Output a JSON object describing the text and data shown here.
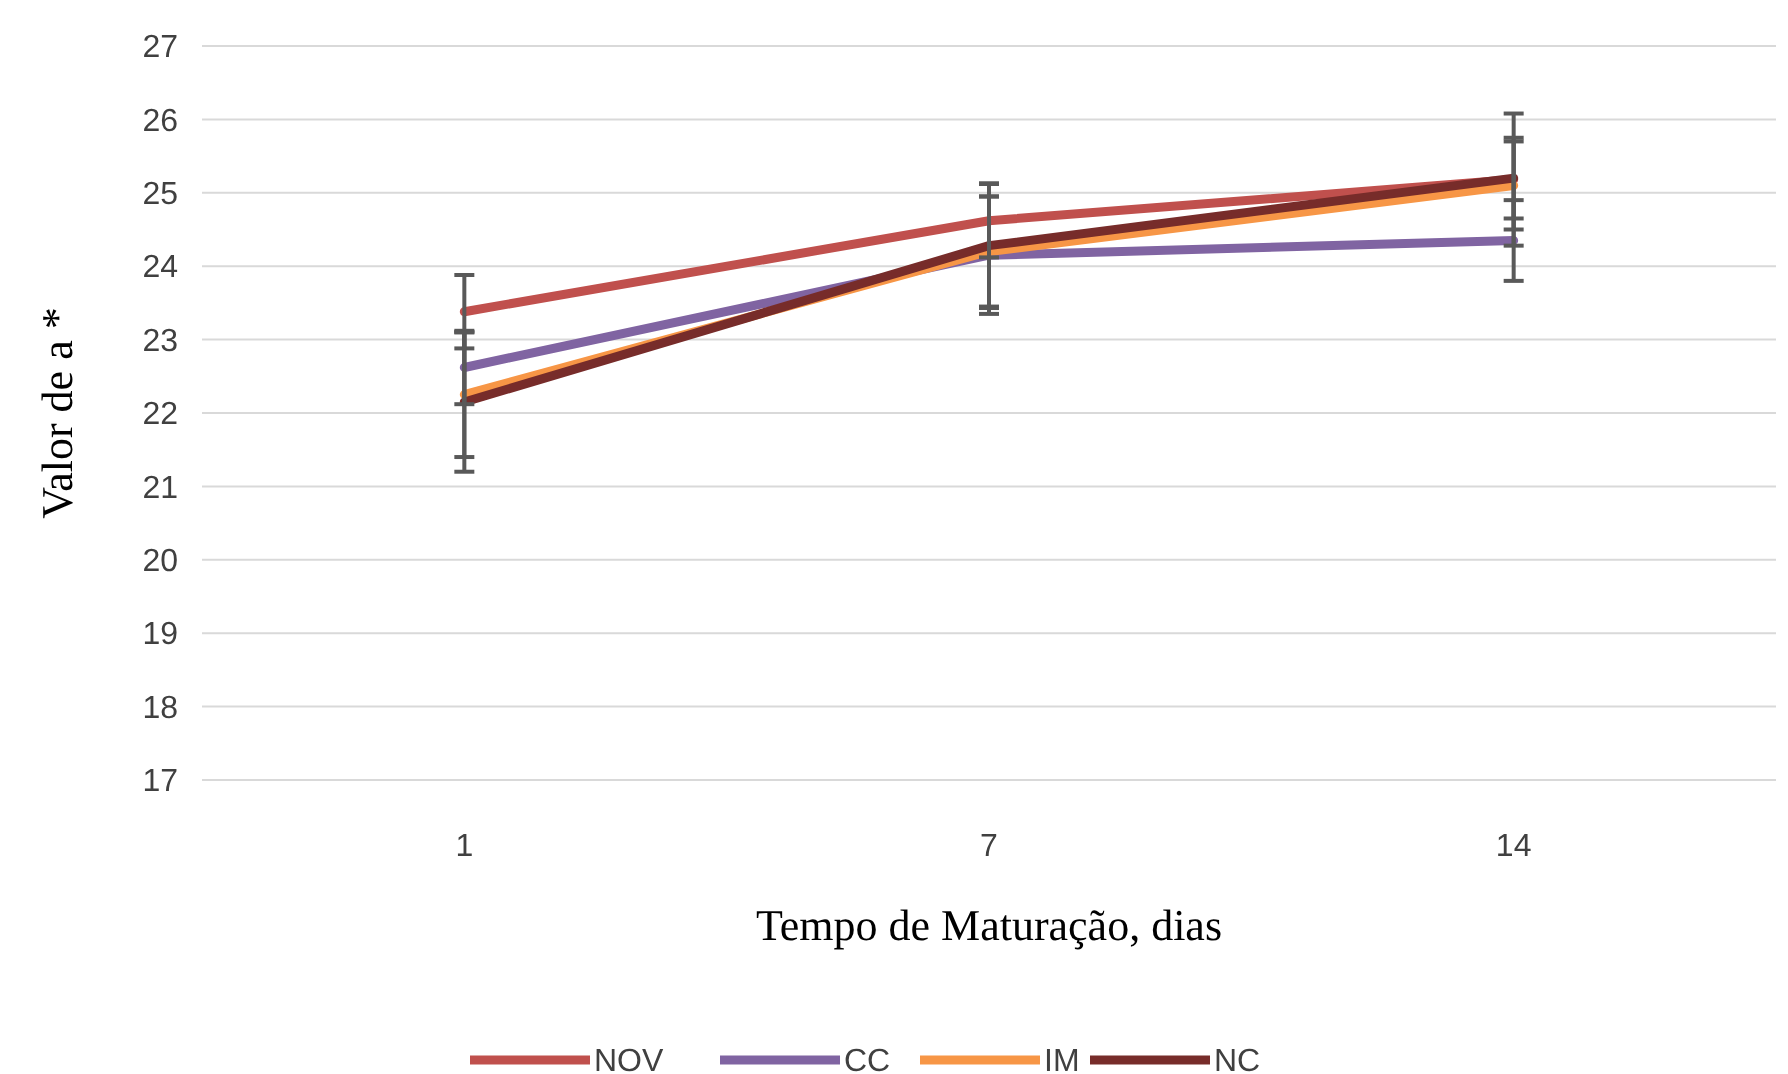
{
  "chart_data": {
    "type": "line",
    "xlabel": "Tempo de Maturação, dias",
    "ylabel": "Valor de a *",
    "categories": [
      "1",
      "7",
      "14"
    ],
    "ylim": [
      17,
      27
    ],
    "yticks": [
      17,
      18,
      19,
      20,
      21,
      22,
      23,
      24,
      25,
      26,
      27
    ],
    "grid": "y",
    "legend": "bottom",
    "marker": "none",
    "series": [
      {
        "name": "NOV",
        "color": "#c0504d",
        "values": [
          23.38,
          24.62,
          25.18
        ],
        "errors": [
          0.5,
          0.5,
          0.9
        ]
      },
      {
        "name": "CC",
        "color": "#8064a2",
        "values": [
          22.62,
          24.15,
          24.35
        ],
        "errors": [
          0.5,
          0.8,
          0.55
        ]
      },
      {
        "name": "IM",
        "color": "#f79646",
        "values": [
          22.25,
          24.2,
          25.1
        ],
        "errors": [
          0.85,
          0.75,
          0.6
        ]
      },
      {
        "name": "NC",
        "color": "#772c2a",
        "values": [
          22.15,
          24.28,
          25.2
        ],
        "errors": [
          0.95,
          0.85,
          0.55
        ]
      }
    ]
  }
}
